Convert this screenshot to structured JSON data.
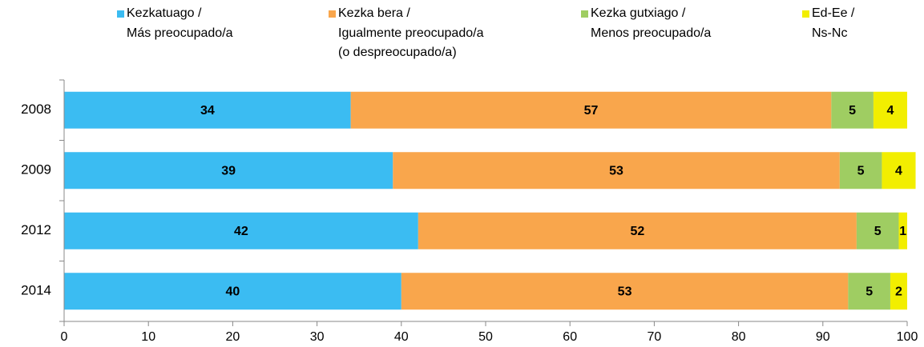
{
  "chart_data": {
    "type": "stacked_bar_horizontal",
    "categories": [
      "2008",
      "2009",
      "2012",
      "2014"
    ],
    "series": [
      {
        "name": "Kezkatuago /\nMás preocupado/a",
        "color": "#3bbcf2",
        "values": [
          34,
          39,
          42,
          40
        ]
      },
      {
        "name": "Kezka bera /\nIgualmente preocupado/a\n(o despreocupado/a)",
        "color": "#f9a64c",
        "values": [
          57,
          53,
          52,
          53
        ]
      },
      {
        "name": "Kezka gutxiago /\nMenos preocupado/a",
        "color": "#9fcd62",
        "values": [
          5,
          5,
          5,
          5
        ]
      },
      {
        "name": "Ed-Ee /\nNs-Nc",
        "color": "#f2ee00",
        "values": [
          4,
          4,
          1,
          2
        ]
      }
    ],
    "xlim": [
      0,
      100
    ],
    "xticks": [
      0,
      10,
      20,
      30,
      40,
      50,
      60,
      70,
      80,
      90,
      100
    ],
    "legend": "top"
  }
}
